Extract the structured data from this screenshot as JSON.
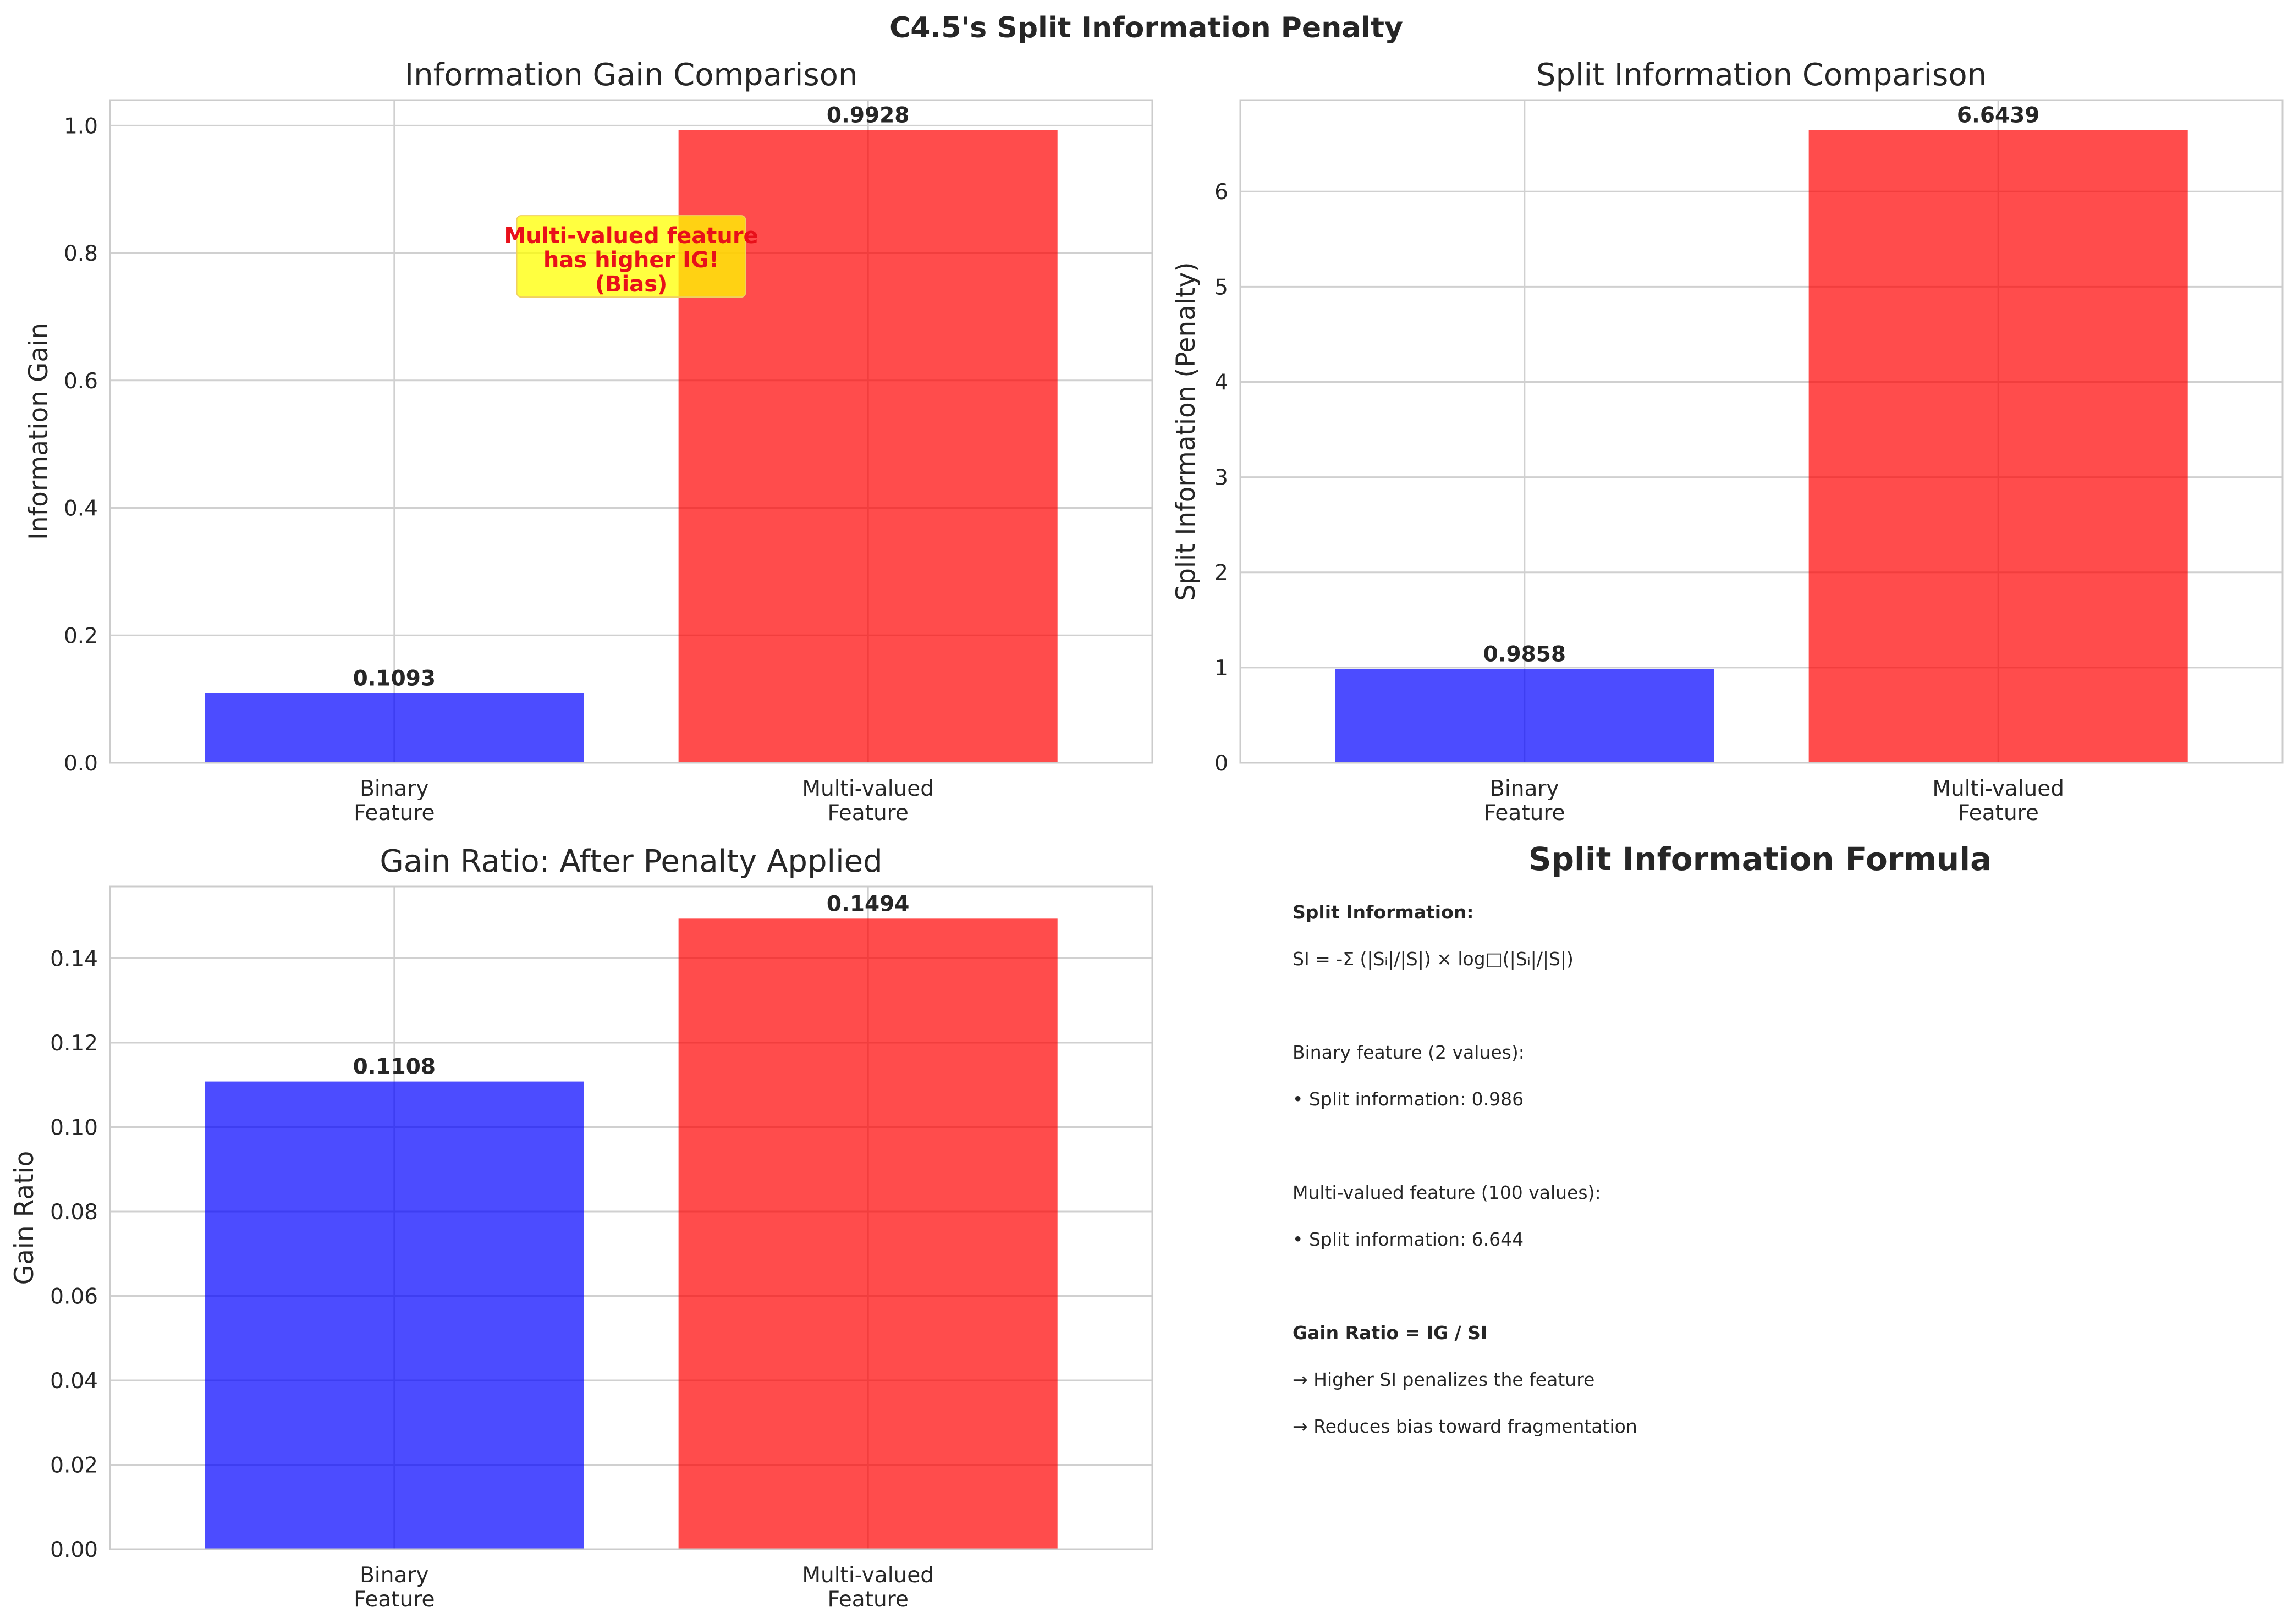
{
  "figure": {
    "suptitle": "C4.5's Split Information Penalty",
    "colors": {
      "binary": "#0000ff",
      "multi": "#ff0000",
      "annotation_box": "#ffff00",
      "annotation_text": "#ee1111"
    }
  },
  "chart_data": [
    {
      "type": "bar",
      "title": "Information Gain Comparison",
      "xlabel": "",
      "ylabel": "Information Gain",
      "categories": [
        "Binary\nFeature",
        "Multi-valued\nFeature"
      ],
      "values": [
        0.1093,
        0.9928
      ],
      "value_labels": [
        "0.1093",
        "0.9928"
      ],
      "colors": [
        "#0000ff",
        "#ff0000"
      ],
      "ylim": [
        0,
        1.04
      ],
      "yticks": [
        0.0,
        0.2,
        0.4,
        0.6,
        0.8,
        1.0
      ],
      "ytick_labels": [
        "0.0",
        "0.2",
        "0.4",
        "0.6",
        "0.8",
        "1.0"
      ],
      "grid": true,
      "annotation": {
        "lines": [
          "Multi-valued feature",
          "has higher IG!",
          "(Bias)"
        ],
        "anchor_x": 0.5,
        "anchor_y": 0.8
      }
    },
    {
      "type": "bar",
      "title": "Split Information Comparison",
      "xlabel": "",
      "ylabel": "Split Information (Penalty)",
      "categories": [
        "Binary\nFeature",
        "Multi-valued\nFeature"
      ],
      "values": [
        0.9858,
        6.6439
      ],
      "value_labels": [
        "0.9858",
        "6.6439"
      ],
      "colors": [
        "#0000ff",
        "#ff0000"
      ],
      "ylim": [
        0,
        6.96
      ],
      "yticks": [
        0,
        1,
        2,
        3,
        4,
        5,
        6
      ],
      "ytick_labels": [
        "0",
        "1",
        "2",
        "3",
        "4",
        "5",
        "6"
      ],
      "grid": true
    },
    {
      "type": "bar",
      "title": "Gain Ratio: After Penalty Applied",
      "xlabel": "",
      "ylabel": "Gain Ratio",
      "categories": [
        "Binary\nFeature",
        "Multi-valued\nFeature"
      ],
      "values": [
        0.1108,
        0.1494
      ],
      "value_labels": [
        "0.1108",
        "0.1494"
      ],
      "colors": [
        "#0000ff",
        "#ff0000"
      ],
      "ylim": [
        0,
        0.157
      ],
      "yticks": [
        0.0,
        0.02,
        0.04,
        0.06,
        0.08,
        0.1,
        0.12,
        0.14
      ],
      "ytick_labels": [
        "0.00",
        "0.02",
        "0.04",
        "0.06",
        "0.08",
        "0.10",
        "0.12",
        "0.14"
      ],
      "grid": true
    }
  ],
  "formula_panel": {
    "title": "Split Information Formula",
    "lines": [
      {
        "text": "Split Information:",
        "bold": true
      },
      {
        "text": "SI = -Σ (|Sᵢ|/|S|) × log□(|Sᵢ|/|S|)",
        "bold": false
      },
      {
        "text": "",
        "bold": false
      },
      {
        "text": "Binary feature (2 values):",
        "bold": false
      },
      {
        "text": "• Split information: 0.986",
        "bold": false
      },
      {
        "text": "",
        "bold": false
      },
      {
        "text": "Multi-valued feature (100 values):",
        "bold": false
      },
      {
        "text": "• Split information: 6.644",
        "bold": false
      },
      {
        "text": "",
        "bold": false
      },
      {
        "text": "Gain Ratio = IG / SI",
        "bold": true
      },
      {
        "text": "→ Higher SI penalizes the feature",
        "bold": false
      },
      {
        "text": "→ Reduces bias toward fragmentation",
        "bold": false
      }
    ]
  }
}
